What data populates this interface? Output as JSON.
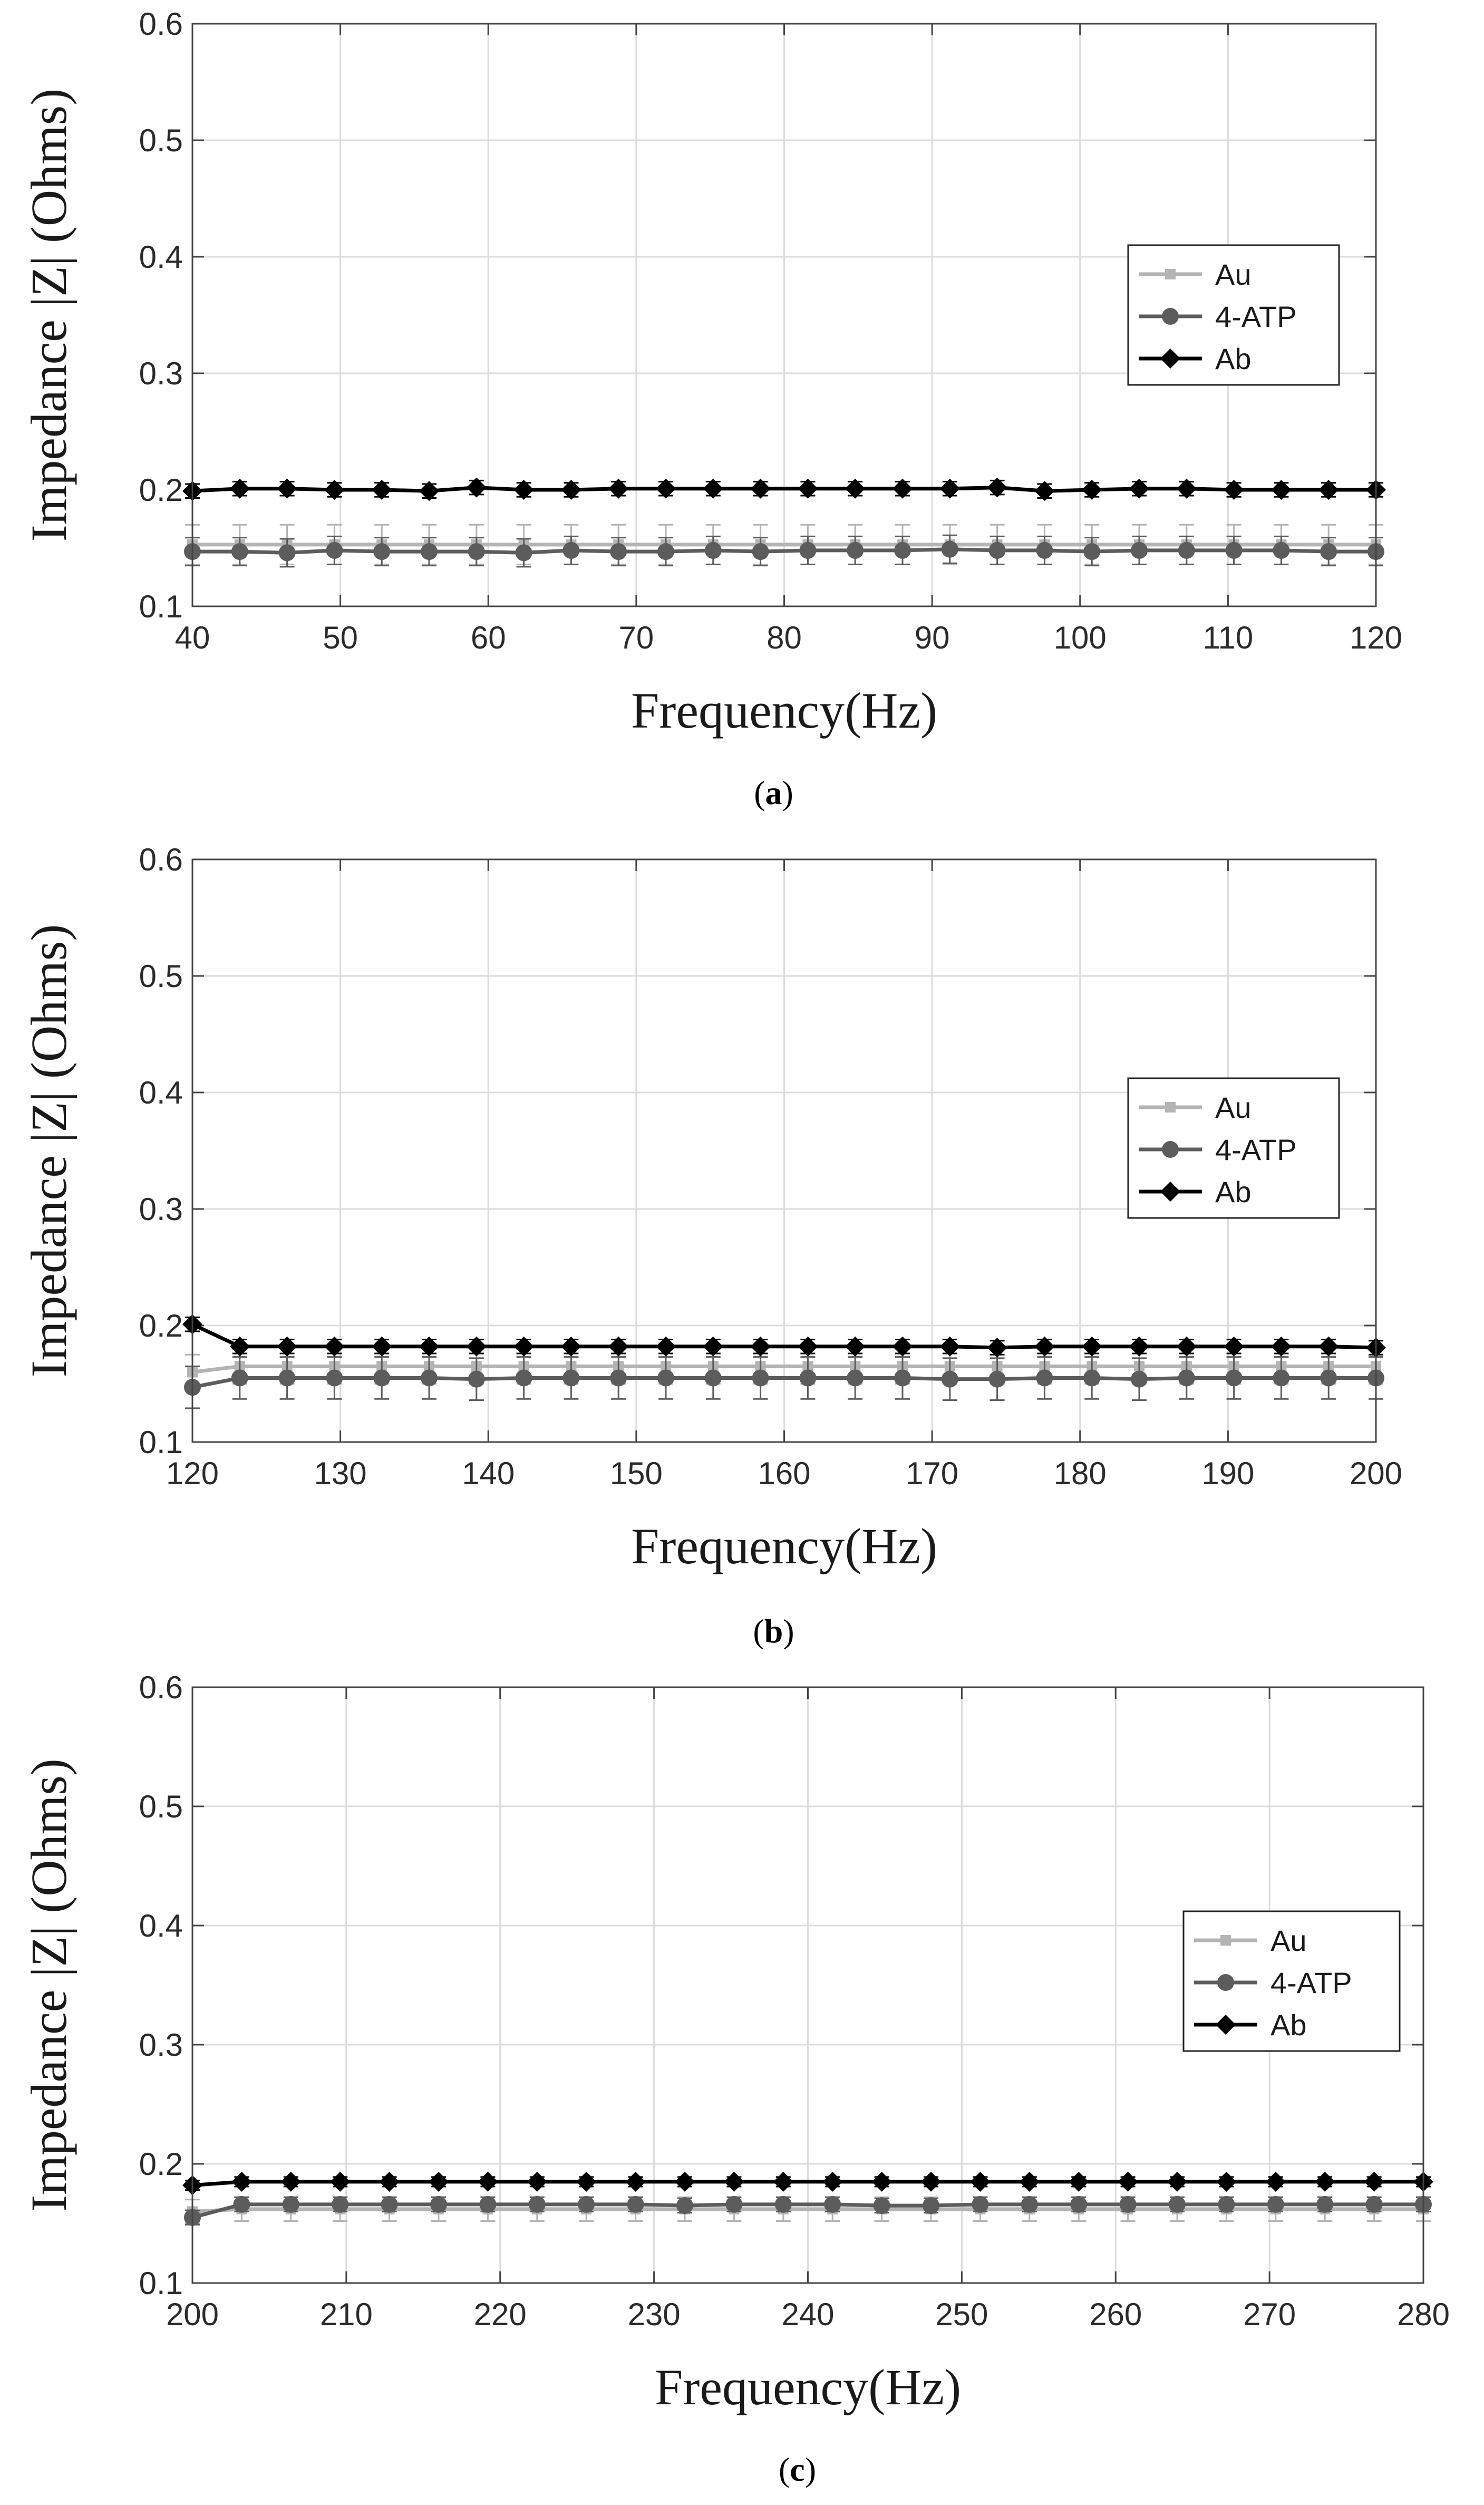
{
  "colors": {
    "au": "#b4b4b4",
    "atp": "#5c5c5c",
    "ab": "#000000",
    "grid": "#dcdcdc",
    "axis": "#444444"
  },
  "chart_data": [
    {
      "type": "line",
      "panel_label": "a",
      "xlabel": "Frequency(Hz)",
      "ylabel": "Impedance |Z| (Ohms)",
      "xlim": [
        40,
        120
      ],
      "ylim": [
        0.1,
        0.6
      ],
      "xticks": [
        40,
        50,
        60,
        70,
        80,
        90,
        100,
        110,
        120
      ],
      "yticks": [
        0.1,
        0.2,
        0.3,
        0.4,
        0.5,
        0.6
      ],
      "x": [
        40,
        43.2,
        46.4,
        49.6,
        52.8,
        56,
        59.2,
        62.4,
        65.6,
        68.8,
        72,
        75.2,
        78.4,
        81.6,
        84.8,
        88,
        91.2,
        94.4,
        97.6,
        100.8,
        104,
        107.2,
        110.4,
        113.6,
        116.8,
        120
      ],
      "grid": true,
      "legend_position": "right",
      "series": [
        {
          "name": "Au",
          "marker": "square",
          "color_key": "au",
          "err": 0.017,
          "values": [
            0.153,
            0.153,
            0.153,
            0.153,
            0.153,
            0.153,
            0.153,
            0.153,
            0.153,
            0.153,
            0.153,
            0.153,
            0.153,
            0.153,
            0.153,
            0.153,
            0.153,
            0.153,
            0.153,
            0.153,
            0.153,
            0.153,
            0.153,
            0.153,
            0.153,
            0.153
          ]
        },
        {
          "name": "4-ATP",
          "marker": "circle",
          "color_key": "atp",
          "err": 0.012,
          "values": [
            0.147,
            0.147,
            0.146,
            0.148,
            0.147,
            0.147,
            0.147,
            0.146,
            0.148,
            0.147,
            0.147,
            0.148,
            0.147,
            0.148,
            0.148,
            0.148,
            0.149,
            0.148,
            0.148,
            0.147,
            0.148,
            0.148,
            0.148,
            0.148,
            0.147,
            0.147
          ]
        },
        {
          "name": "Ab",
          "marker": "diamond",
          "color_key": "ab",
          "err": 0.006,
          "values": [
            0.199,
            0.201,
            0.201,
            0.2,
            0.2,
            0.199,
            0.202,
            0.2,
            0.2,
            0.201,
            0.201,
            0.201,
            0.201,
            0.201,
            0.201,
            0.201,
            0.201,
            0.202,
            0.199,
            0.2,
            0.201,
            0.201,
            0.2,
            0.2,
            0.2,
            0.2
          ]
        }
      ]
    },
    {
      "type": "line",
      "panel_label": "b",
      "xlabel": "Frequency(Hz)",
      "ylabel": "Impedance |Z| (Ohms)",
      "xlim": [
        120,
        200
      ],
      "ylim": [
        0.1,
        0.6
      ],
      "xticks": [
        120,
        130,
        140,
        150,
        160,
        170,
        180,
        190,
        200
      ],
      "yticks": [
        0.1,
        0.2,
        0.3,
        0.4,
        0.5,
        0.6
      ],
      "x": [
        120,
        123.2,
        126.4,
        129.6,
        132.8,
        136,
        139.2,
        142.4,
        145.6,
        148.8,
        152,
        155.2,
        158.4,
        161.6,
        164.8,
        168,
        171.2,
        174.4,
        177.6,
        180.8,
        184,
        187.2,
        190.4,
        193.6,
        196.8,
        200
      ],
      "grid": true,
      "legend_position": "right",
      "series": [
        {
          "name": "Au",
          "marker": "square",
          "color_key": "au",
          "err": 0.015,
          "values": [
            0.16,
            0.165,
            0.165,
            0.165,
            0.165,
            0.165,
            0.165,
            0.165,
            0.165,
            0.165,
            0.165,
            0.165,
            0.165,
            0.165,
            0.165,
            0.165,
            0.165,
            0.165,
            0.165,
            0.165,
            0.165,
            0.165,
            0.165,
            0.165,
            0.165,
            0.165
          ]
        },
        {
          "name": "4-ATP",
          "marker": "circle",
          "color_key": "atp",
          "err": 0.018,
          "values": [
            0.147,
            0.155,
            0.155,
            0.155,
            0.155,
            0.155,
            0.154,
            0.155,
            0.155,
            0.155,
            0.155,
            0.155,
            0.155,
            0.155,
            0.155,
            0.155,
            0.154,
            0.154,
            0.155,
            0.155,
            0.154,
            0.155,
            0.155,
            0.155,
            0.155,
            0.155
          ]
        },
        {
          "name": "Ab",
          "marker": "diamond",
          "color_key": "ab",
          "err": 0.006,
          "values": [
            0.201,
            0.182,
            0.182,
            0.182,
            0.182,
            0.182,
            0.182,
            0.182,
            0.182,
            0.182,
            0.182,
            0.182,
            0.182,
            0.182,
            0.182,
            0.182,
            0.182,
            0.181,
            0.182,
            0.182,
            0.182,
            0.182,
            0.182,
            0.182,
            0.182,
            0.181
          ]
        }
      ]
    },
    {
      "type": "line",
      "panel_label": "c",
      "xlabel": "Frequency(Hz)",
      "ylabel": "Impedance |Z| (Ohms)",
      "xlim": [
        200,
        280
      ],
      "ylim": [
        0.1,
        0.6
      ],
      "xticks": [
        200,
        210,
        220,
        230,
        240,
        250,
        260,
        270,
        280
      ],
      "yticks": [
        0.1,
        0.2,
        0.3,
        0.4,
        0.5,
        0.6
      ],
      "x": [
        200,
        203.2,
        206.4,
        209.6,
        212.8,
        216,
        219.2,
        222.4,
        225.6,
        228.8,
        232,
        235.2,
        238.4,
        241.6,
        244.8,
        248,
        251.2,
        254.4,
        257.6,
        260.8,
        264,
        267.2,
        270.4,
        273.6,
        276.8,
        280
      ],
      "grid": true,
      "legend_position": "right",
      "series": [
        {
          "name": "Au",
          "marker": "square",
          "color_key": "au",
          "err": 0.01,
          "values": [
            0.16,
            0.162,
            0.162,
            0.162,
            0.162,
            0.162,
            0.162,
            0.162,
            0.162,
            0.162,
            0.162,
            0.162,
            0.162,
            0.162,
            0.162,
            0.162,
            0.162,
            0.162,
            0.162,
            0.162,
            0.162,
            0.162,
            0.162,
            0.162,
            0.162,
            0.162
          ]
        },
        {
          "name": "4-ATP",
          "marker": "circle",
          "color_key": "atp",
          "err": 0.006,
          "values": [
            0.155,
            0.166,
            0.166,
            0.166,
            0.166,
            0.166,
            0.166,
            0.166,
            0.166,
            0.166,
            0.165,
            0.166,
            0.166,
            0.166,
            0.165,
            0.165,
            0.166,
            0.166,
            0.166,
            0.166,
            0.166,
            0.166,
            0.166,
            0.166,
            0.166,
            0.166
          ]
        },
        {
          "name": "Ab",
          "marker": "diamond",
          "color_key": "ab",
          "err": 0.004,
          "values": [
            0.182,
            0.185,
            0.185,
            0.185,
            0.185,
            0.185,
            0.185,
            0.185,
            0.185,
            0.185,
            0.185,
            0.185,
            0.185,
            0.185,
            0.185,
            0.185,
            0.185,
            0.185,
            0.185,
            0.185,
            0.185,
            0.185,
            0.185,
            0.185,
            0.185,
            0.185
          ]
        }
      ]
    }
  ]
}
